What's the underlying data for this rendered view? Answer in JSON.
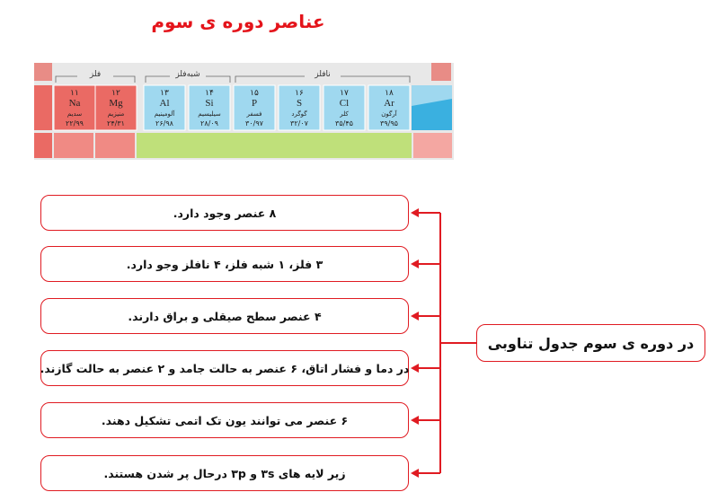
{
  "title": "عناصر دوره ی سوم",
  "table": {
    "groups": [
      "فلز",
      "شبه‌فلز",
      "نافلز"
    ],
    "elements": [
      {
        "number": "۱۱",
        "symbol": "Na",
        "name": "سدیم",
        "mass": "۲۲/۹۹"
      },
      {
        "number": "۱۲",
        "symbol": "Mg",
        "name": "منیزیم",
        "mass": "۲۴/۳۱"
      },
      {
        "number": "۱۳",
        "symbol": "Al",
        "name": "آلومینیم",
        "mass": "۲۶/۹۸"
      },
      {
        "number": "۱۴",
        "symbol": "Si",
        "name": "سیلیسیم",
        "mass": "۲۸/۰۹"
      },
      {
        "number": "۱۵",
        "symbol": "P",
        "name": "فسفر",
        "mass": "۳۰/۹۷"
      },
      {
        "number": "۱۶",
        "symbol": "S",
        "name": "گوگرد",
        "mass": "۳۲/۰۷"
      },
      {
        "number": "۱۷",
        "symbol": "Cl",
        "name": "کلر",
        "mass": "۳۵/۴۵"
      },
      {
        "number": "۱۸",
        "symbol": "Ar",
        "name": "آرگون",
        "mass": "۳۹/۹۵"
      }
    ]
  },
  "center": "در دوره ی سوم جدول تناوبی",
  "facts": [
    "۸ عنصر وجود دارد.",
    "۳ فلز، ۱ شبه فلز، ۴ نافلز وجو دارد.",
    "۴ عنصر سطح صیقلی و براق دارند.",
    "در دما و فشار اتاق، ۶ عنصر به حالت جامد و ۲ عنصر به حالت گازند.",
    "۶ عنصر می توانند یون تک اتمی تشکیل دهند.",
    "زیر لایه های ۳s و ۳p درحال پر شدن هستند."
  ]
}
